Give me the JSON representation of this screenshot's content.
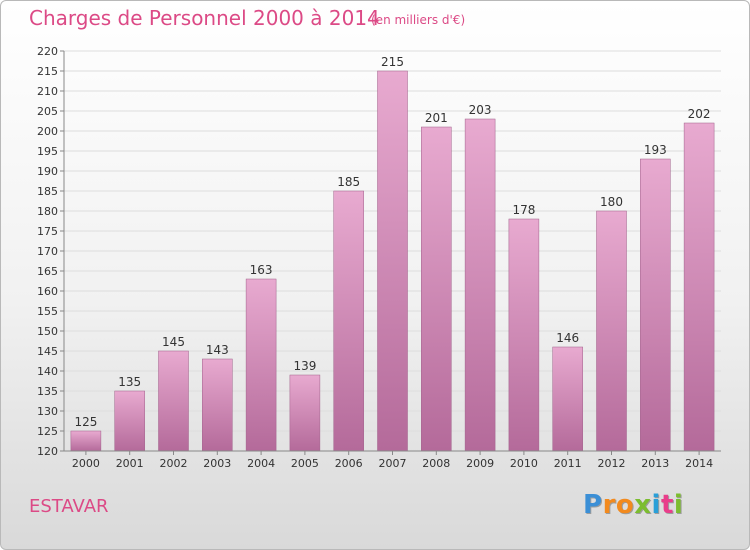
{
  "header": {
    "title": "Charges de Personnel 2000 à 2014",
    "subtitle": "(en milliers d'€)"
  },
  "footer": {
    "commune": "ESTAVAR",
    "logo": {
      "letters": [
        "P",
        "r",
        "o",
        "x",
        "i",
        "t",
        "i"
      ],
      "colors": [
        "#3b8fd6",
        "#f28a1e",
        "#f28a1e",
        "#7cbd2f",
        "#2a9fd8",
        "#e93e8b",
        "#7cbd2f"
      ]
    }
  },
  "colors": {
    "bar_top": "#e8aad0",
    "bar_bottom": "#b46a9a",
    "bar_stroke": "#a0608a",
    "accent": "#dc4a86"
  },
  "chart_data": {
    "type": "bar",
    "title": "Charges de Personnel 2000 à 2014",
    "subtitle": "(en milliers d'€)",
    "categories": [
      "2000",
      "2001",
      "2002",
      "2003",
      "2004",
      "2005",
      "2006",
      "2007",
      "2008",
      "2009",
      "2010",
      "2011",
      "2012",
      "2013",
      "2014"
    ],
    "values": [
      125,
      135,
      145,
      143,
      163,
      139,
      185,
      215,
      201,
      203,
      178,
      146,
      180,
      193,
      202
    ],
    "ylim": [
      120,
      220
    ],
    "yticks": [
      120,
      125,
      130,
      135,
      140,
      145,
      150,
      155,
      160,
      165,
      170,
      175,
      180,
      185,
      190,
      195,
      200,
      205,
      210,
      215,
      220
    ],
    "grid": true,
    "data_labels": true
  }
}
